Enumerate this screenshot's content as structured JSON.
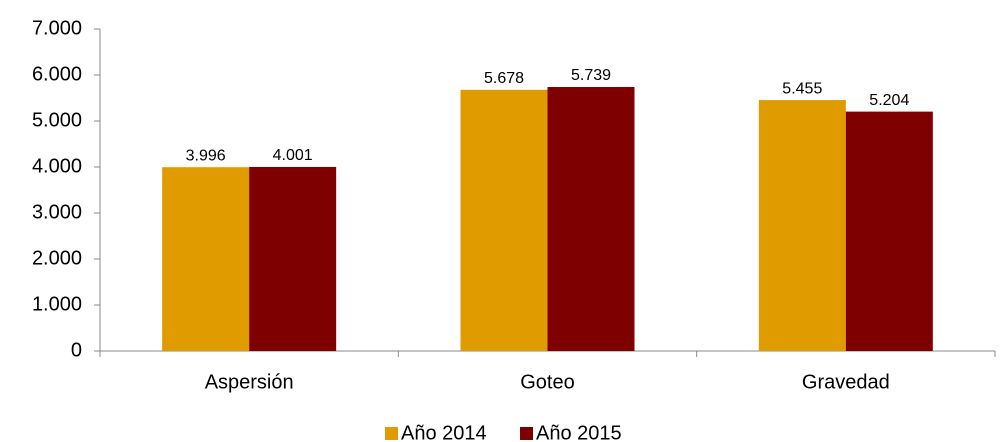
{
  "chart_data": {
    "type": "bar",
    "categories": [
      "Aspersión",
      "Goteo",
      "Gravedad"
    ],
    "series": [
      {
        "name": "Año 2014",
        "color": "#e09b00",
        "values": [
          3996,
          5678,
          5455
        ],
        "value_labels": [
          "3.996",
          "5.678",
          "5.455"
        ]
      },
      {
        "name": "Año 2015",
        "color": "#7f0000",
        "values": [
          4001,
          5739,
          5204
        ],
        "value_labels": [
          "4.001",
          "5.739",
          "5.204"
        ]
      }
    ],
    "ylim": [
      0,
      7000
    ],
    "yticks": [
      0,
      {
        "value": 1000,
        "label": "1.000"
      },
      {
        "value": 2000,
        "label": "2.000"
      },
      {
        "value": 3000,
        "label": "3.000"
      },
      {
        "value": 4000,
        "label": "4.000"
      },
      {
        "value": 5000,
        "label": "5.000"
      },
      {
        "value": 6000,
        "label": "6.000"
      },
      {
        "value": 7000,
        "label": "7.000"
      }
    ],
    "grid": false,
    "legend": "bottom"
  }
}
